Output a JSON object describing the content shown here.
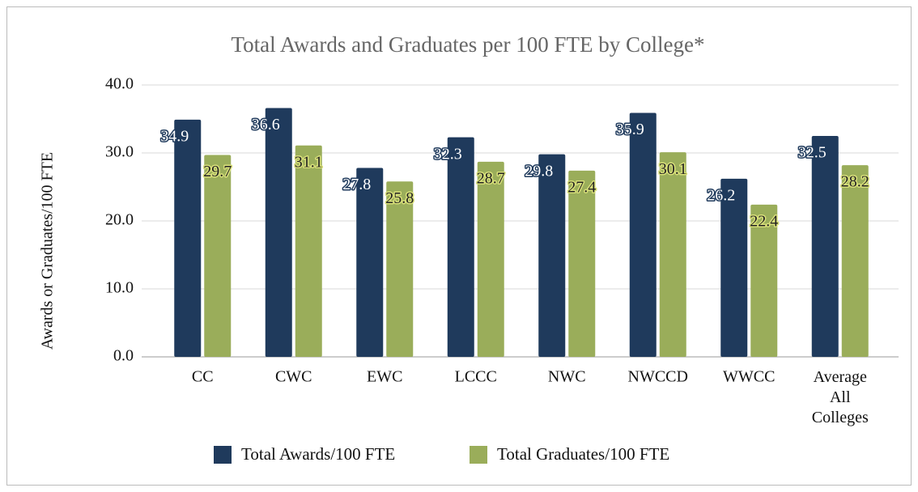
{
  "chart_data": {
    "type": "bar",
    "title": "Total Awards and Graduates per 100 FTE by College*",
    "y_label": "Awards or Graduates/100 FTE",
    "categories": [
      "CC",
      "CWC",
      "EWC",
      "LCCC",
      "NWC",
      "NWCCD",
      "WWCC",
      "Average All Colleges"
    ],
    "series": [
      {
        "name": "Total Awards/100 FTE",
        "color": "#1f3a5c",
        "values": [
          34.9,
          36.6,
          27.8,
          32.3,
          29.8,
          35.9,
          26.2,
          32.5
        ]
      },
      {
        "name": "Total Graduates/100 FTE",
        "color": "#9aad5a",
        "values": [
          29.7,
          31.1,
          25.8,
          28.7,
          27.4,
          30.1,
          22.4,
          28.2
        ]
      }
    ],
    "ylim": [
      0,
      40
    ],
    "yticks": [
      {
        "value": 0,
        "label": "0.0"
      },
      {
        "value": 10,
        "label": "10.0"
      },
      {
        "value": 20,
        "label": "20.0"
      },
      {
        "value": 30,
        "label": "30.0"
      },
      {
        "value": 40,
        "label": "40.0"
      }
    ],
    "grid": true,
    "legend": "bottom"
  }
}
